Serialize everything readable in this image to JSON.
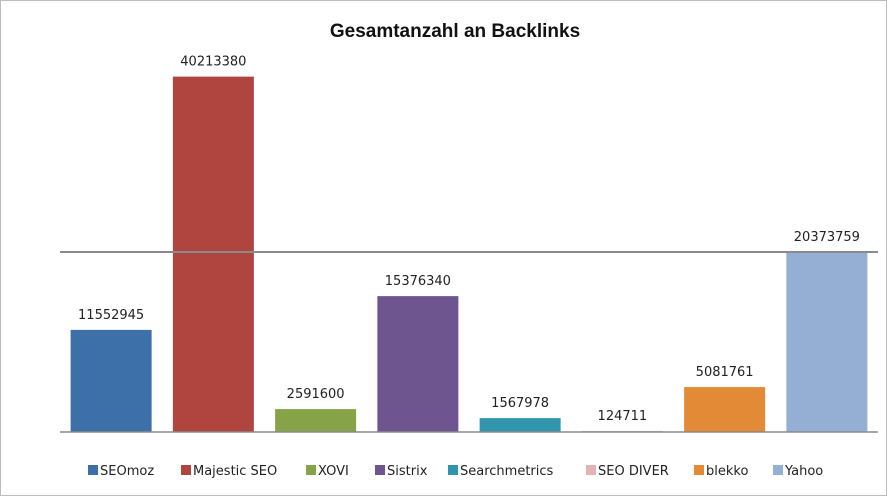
{
  "chart_data": {
    "type": "bar",
    "title": "Gesamtanzahl an Backlinks",
    "xlabel": "",
    "ylabel": "",
    "ylim": [
      0,
      43000000
    ],
    "reference_line": 20373759,
    "categories": [
      "SEOmoz",
      "Majestic SEO",
      "XOVI",
      "Sistrix",
      "Searchmetrics",
      "SEO DIVER",
      "blekko",
      "Yahoo"
    ],
    "values": [
      11552945,
      40213380,
      2591600,
      15376340,
      1567978,
      124711,
      5081761,
      20373759
    ],
    "value_labels": [
      "11552945",
      "40213380",
      "2591600",
      "15376340",
      "1567978",
      "124711",
      "5081761",
      "20373759"
    ],
    "colors": [
      "#3d6fa8",
      "#b04540",
      "#86a447",
      "#6f5590",
      "#3196ad",
      "#e3b4b3",
      "#e38a36",
      "#95aed4"
    ],
    "legend": {
      "position": "bottom",
      "entries": [
        "SEOmoz",
        "Majestic SEO",
        "XOVI",
        "Sistrix",
        "Searchmetrics",
        "SEO DIVER",
        "blekko",
        "Yahoo"
      ]
    },
    "grid": false
  }
}
